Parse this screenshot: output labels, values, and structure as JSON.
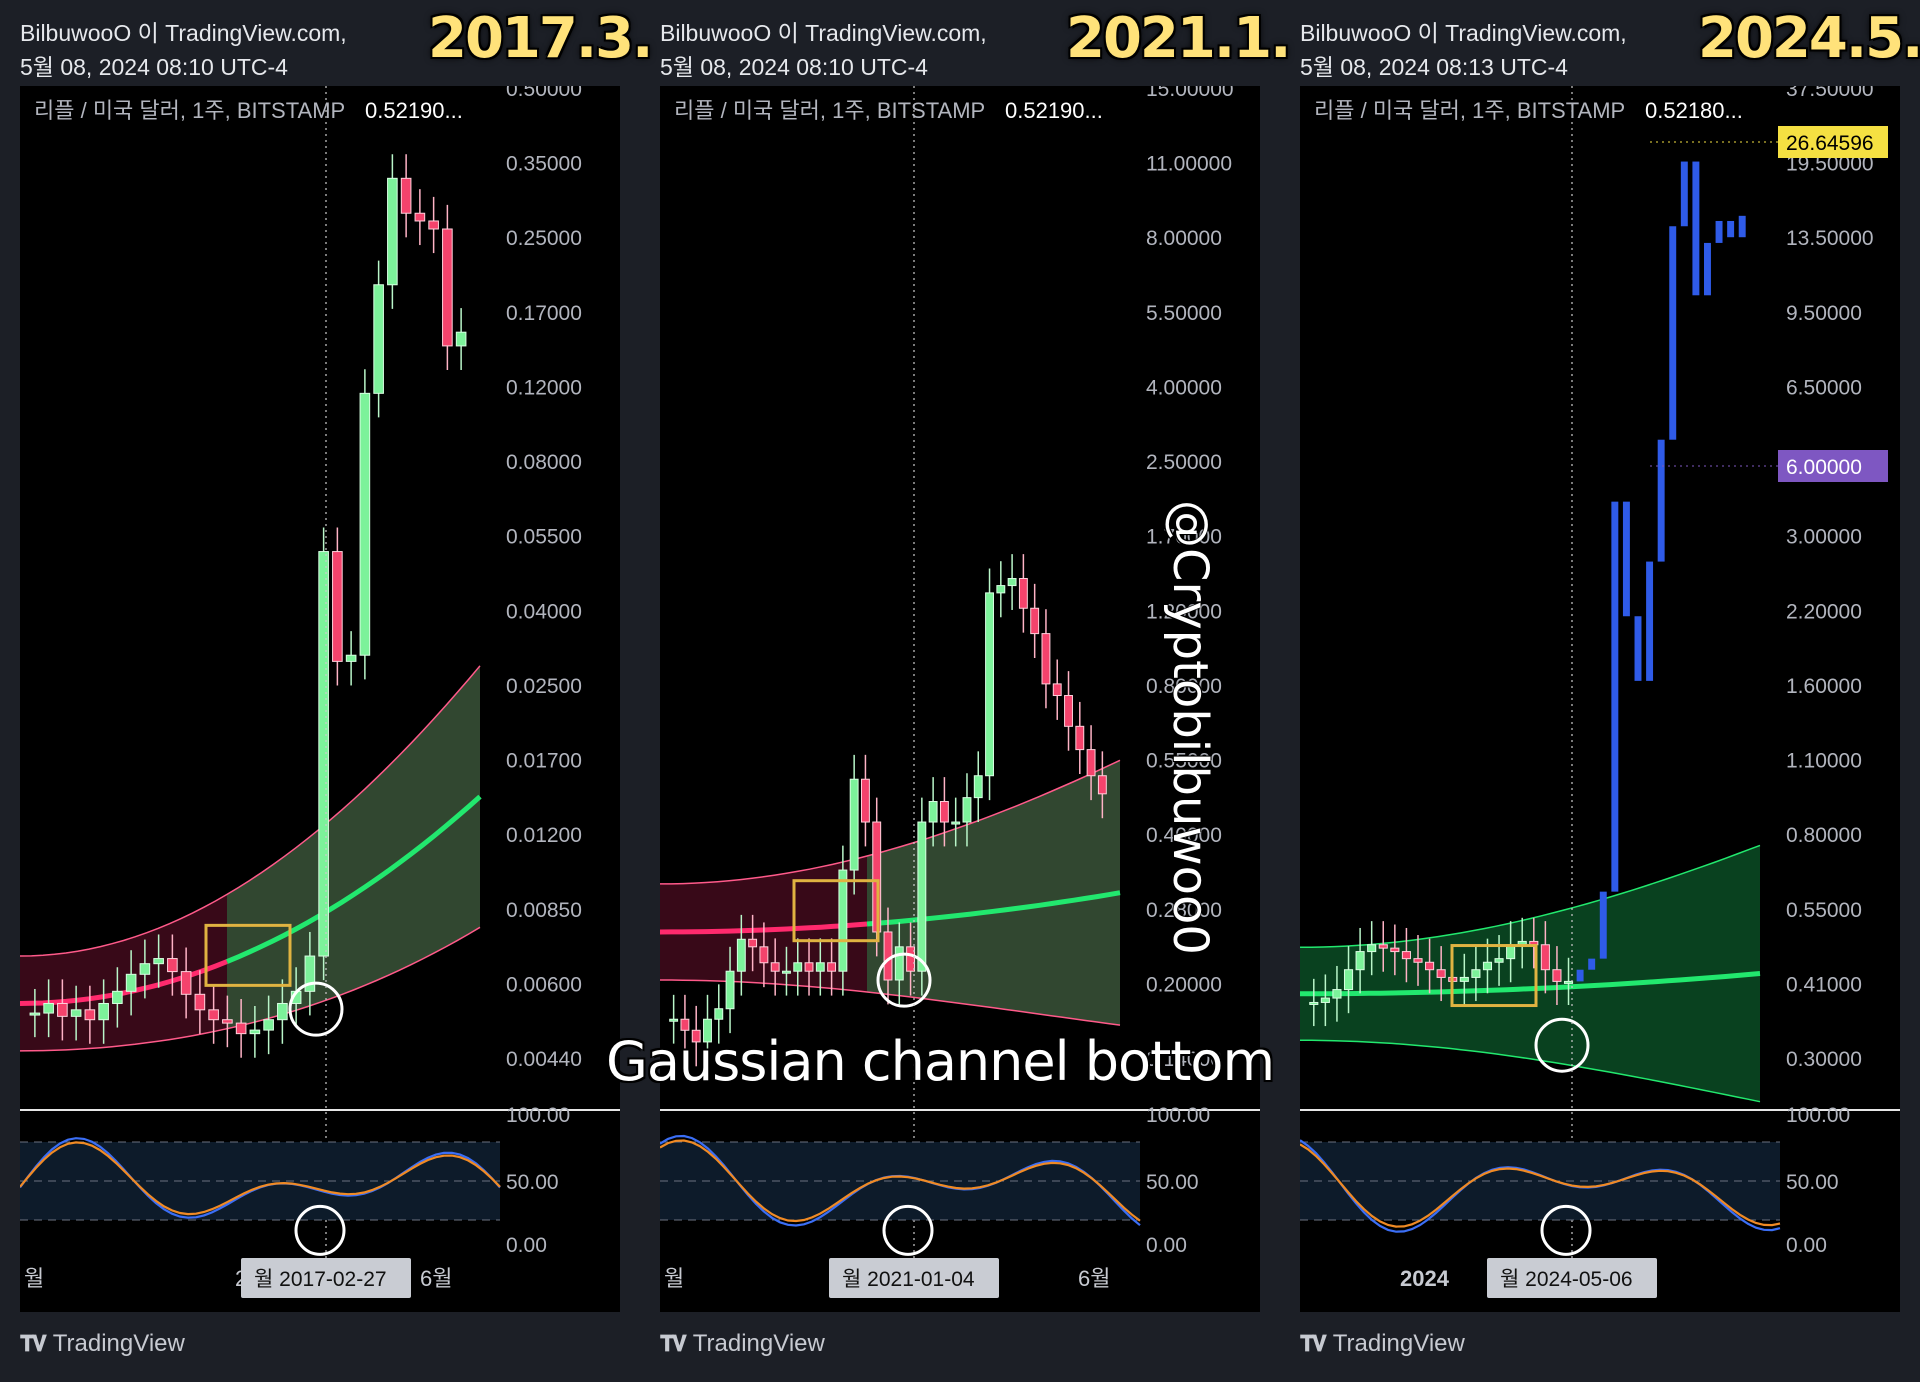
{
  "watermark": "@Cryptobilbuwoo0",
  "overlay_label": "Gaussian channel bottom",
  "footer_brand": "TradingView",
  "panels": [
    {
      "author_line": "BilbuwooO 이 TradingView.com,",
      "date_line": "5월 08, 2024 08:10 UTC-4",
      "year_label": "2017.3.",
      "legend_prefix": "리플 / 미국 달러, 1주, BITSTAMP",
      "legend_price": "0.52190...",
      "price_ticks": [
        "0.50000",
        "0.35000",
        "0.25000",
        "0.17000",
        "0.12000",
        "0.08000",
        "0.05500",
        "0.04000",
        "0.02500",
        "0.01700",
        "0.01200",
        "0.00850",
        "0.00600",
        "0.00440"
      ],
      "osc_ticks": [
        "100.00",
        "50.00",
        "0.00"
      ],
      "x_labels": [
        "월",
        "201",
        "6월"
      ],
      "crosshair_date": "월 2017-02-27"
    },
    {
      "author_line": "BilbuwooO 이 TradingView.com,",
      "date_line": "5월 08, 2024 08:10 UTC-4",
      "year_label": "2021.1.",
      "legend_prefix": "리플 / 미국 달러, 1주, BITSTAMP",
      "legend_price": "0.52190...",
      "price_ticks": [
        "15.00000",
        "11.00000",
        "8.00000",
        "5.50000",
        "4.00000",
        "2.50000",
        "1.70000",
        "1.20000",
        "0.80000",
        "0.55000",
        "0.40000",
        "0.28000",
        "0.20000",
        "0.14000"
      ],
      "osc_ticks": [
        "100.00",
        "50.00",
        "0.00"
      ],
      "x_labels": [
        "월",
        "6월"
      ],
      "crosshair_date": "월 2021-01-04"
    },
    {
      "author_line": "BilbuwooO 이 TradingView.com,",
      "date_line": "5월 08, 2024 08:13 UTC-4",
      "year_label": "2024.5.",
      "legend_prefix": "리플 / 미국 달러, 1주, BITSTAMP",
      "legend_price": "0.52180...",
      "price_ticks": [
        "37.50000",
        "19.50000",
        "13.50000",
        "9.50000",
        "6.50000",
        "4.50000",
        "3.00000",
        "2.20000",
        "1.60000",
        "1.10000",
        "0.80000",
        "0.55000",
        "0.41000",
        "0.30000"
      ],
      "price_tags": [
        {
          "value": "26.64596",
          "color": "#f5e042",
          "text_color": "#000000"
        },
        {
          "value": "6.00000",
          "color": "#7e57c2",
          "text_color": "#ffffff"
        }
      ],
      "osc_ticks": [
        "100.00",
        "50.00",
        "0.00"
      ],
      "x_labels": [
        "2024"
      ],
      "crosshair_date": "월 2024-05-06"
    }
  ],
  "chart_data": [
    {
      "type": "candlestick",
      "title": "리플 / 미국 달러, 1주, BITSTAMP",
      "scale": "log",
      "ylim": [
        0.0044,
        0.5
      ],
      "marked_date": "2017-02-27",
      "close_trend": [
        0.0065,
        0.0068,
        0.0064,
        0.0066,
        0.0063,
        0.0068,
        0.0072,
        0.0078,
        0.0082,
        0.0084,
        0.0079,
        0.0071,
        0.0066,
        0.0063,
        0.0062,
        0.0059,
        0.006,
        0.0063,
        0.0068,
        0.0072,
        0.0085,
        0.057,
        0.034,
        0.035,
        0.12,
        0.2,
        0.33,
        0.28,
        0.27,
        0.26,
        0.15,
        0.16
      ],
      "gaussian_channel": {
        "start": 0.0068,
        "end": 0.018,
        "color_bear": "#ff2a6d",
        "color_bull": "#22e86e"
      }
    },
    {
      "type": "candlestick",
      "title": "리플 / 미국 달러, 1주, BITSTAMP",
      "scale": "log",
      "ylim": [
        0.14,
        15.0
      ],
      "marked_date": "2021-01-04",
      "close_trend": [
        0.2,
        0.19,
        0.18,
        0.2,
        0.21,
        0.25,
        0.29,
        0.28,
        0.26,
        0.25,
        0.25,
        0.26,
        0.25,
        0.26,
        0.25,
        0.4,
        0.61,
        0.5,
        0.3,
        0.24,
        0.28,
        0.25,
        0.5,
        0.55,
        0.5,
        0.5,
        0.56,
        0.62,
        1.45,
        1.5,
        1.55,
        1.35,
        1.2,
        0.95,
        0.9,
        0.78,
        0.7,
        0.62,
        0.57
      ],
      "gaussian_channel": {
        "start": 0.3,
        "end": 0.36,
        "color_bear": "#ff2a6d",
        "color_bull": "#22e86e"
      }
    },
    {
      "type": "candlestick",
      "title": "리플 / 미국 달러, 1주, BITSTAMP",
      "scale": "log",
      "ylim": [
        0.3,
        37.5
      ],
      "marked_date": "2024-05-06",
      "close_trend": [
        0.47,
        0.48,
        0.5,
        0.55,
        0.6,
        0.62,
        0.61,
        0.6,
        0.58,
        0.57,
        0.55,
        0.53,
        0.52,
        0.53,
        0.55,
        0.57,
        0.58,
        0.62,
        0.63,
        0.62,
        0.55,
        0.52,
        0.52
      ],
      "projection": [
        0.55,
        0.58,
        0.8,
        5.2,
        3.0,
        2.2,
        3.9,
        7.0,
        19.5,
        26.6,
        14.0,
        18.0,
        20.0,
        18.5,
        20.5
      ],
      "gaussian_channel": {
        "start": 0.49,
        "end": 0.54,
        "color_bull": "#22e86e"
      }
    }
  ]
}
